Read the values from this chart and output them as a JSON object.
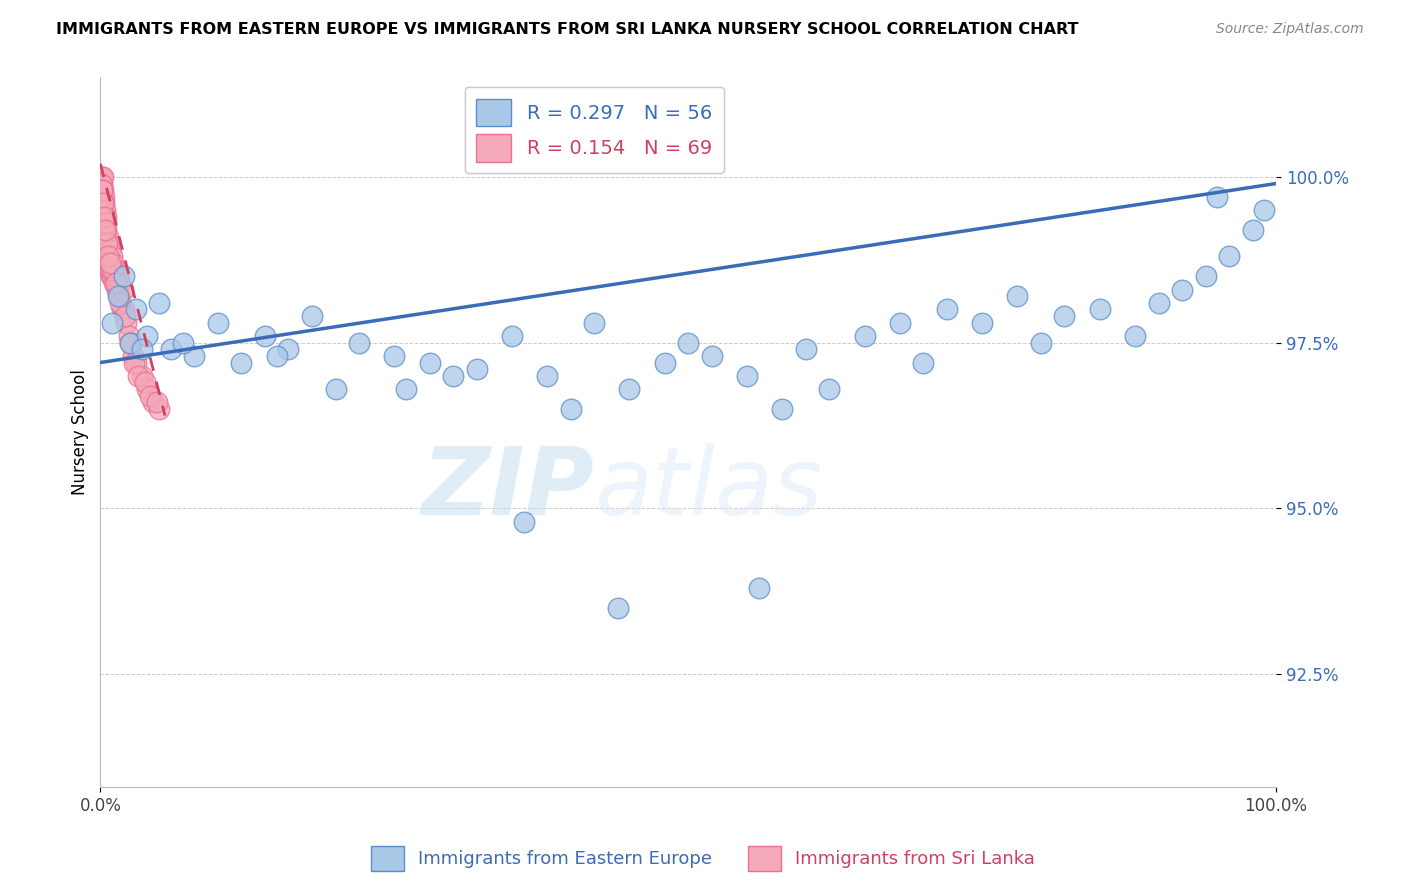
{
  "title": "IMMIGRANTS FROM EASTERN EUROPE VS IMMIGRANTS FROM SRI LANKA NURSERY SCHOOL CORRELATION CHART",
  "source": "Source: ZipAtlas.com",
  "ylabel": "Nursery School",
  "y_ticks": [
    92.5,
    95.0,
    97.5,
    100.0
  ],
  "y_tick_labels": [
    "92.5%",
    "95.0%",
    "97.5%",
    "100.0%"
  ],
  "x_range": [
    0,
    100
  ],
  "y_range": [
    90.8,
    101.5
  ],
  "legend_blue_label": "R = 0.297   N = 56",
  "legend_pink_label": "R = 0.154   N = 69",
  "legend_bottom_blue": "Immigrants from Eastern Europe",
  "legend_bottom_pink": "Immigrants from Sri Lanka",
  "blue_color": "#A8C8E8",
  "pink_color": "#F4A8B8",
  "blue_edge_color": "#5A8EC8",
  "pink_edge_color": "#E87090",
  "blue_line_color": "#3A6CB8",
  "pink_line_color": "#D04060",
  "watermark_zip": "ZIP",
  "watermark_atlas": "atlas",
  "blue_R": 0.297,
  "blue_N": 56,
  "pink_R": 0.154,
  "pink_N": 69,
  "blue_scatter_x": [
    1.0,
    1.5,
    2.0,
    2.5,
    3.0,
    4.0,
    5.0,
    6.0,
    8.0,
    10.0,
    12.0,
    14.0,
    16.0,
    18.0,
    20.0,
    22.0,
    25.0,
    28.0,
    30.0,
    32.0,
    35.0,
    38.0,
    40.0,
    42.0,
    45.0,
    48.0,
    50.0,
    52.0,
    55.0,
    58.0,
    60.0,
    62.0,
    65.0,
    68.0,
    70.0,
    72.0,
    75.0,
    78.0,
    80.0,
    82.0,
    85.0,
    88.0,
    90.0,
    92.0,
    94.0,
    96.0,
    98.0,
    99.0,
    3.5,
    7.0,
    15.0,
    26.0,
    36.0,
    44.0,
    56.0,
    95.0
  ],
  "blue_scatter_y": [
    97.8,
    98.2,
    98.5,
    97.5,
    98.0,
    97.6,
    98.1,
    97.4,
    97.3,
    97.8,
    97.2,
    97.6,
    97.4,
    97.9,
    96.8,
    97.5,
    97.3,
    97.2,
    97.0,
    97.1,
    97.6,
    97.0,
    96.5,
    97.8,
    96.8,
    97.2,
    97.5,
    97.3,
    97.0,
    96.5,
    97.4,
    96.8,
    97.6,
    97.8,
    97.2,
    98.0,
    97.8,
    98.2,
    97.5,
    97.9,
    98.0,
    97.6,
    98.1,
    98.3,
    98.5,
    98.8,
    99.2,
    99.5,
    97.4,
    97.5,
    97.3,
    96.8,
    94.8,
    93.5,
    93.8,
    99.7
  ],
  "pink_scatter_x": [
    0.05,
    0.08,
    0.1,
    0.12,
    0.15,
    0.18,
    0.2,
    0.22,
    0.25,
    0.28,
    0.3,
    0.32,
    0.35,
    0.38,
    0.4,
    0.42,
    0.45,
    0.5,
    0.55,
    0.6,
    0.65,
    0.7,
    0.75,
    0.8,
    0.85,
    0.9,
    0.95,
    1.0,
    1.1,
    1.2,
    1.3,
    1.4,
    1.5,
    1.6,
    1.7,
    1.8,
    1.9,
    2.0,
    2.2,
    2.4,
    2.6,
    2.8,
    3.0,
    3.5,
    4.0,
    4.5,
    5.0,
    0.06,
    0.09,
    0.16,
    0.48,
    0.58,
    0.88,
    1.05,
    1.35,
    1.65,
    2.1,
    2.5,
    2.9,
    3.2,
    3.8,
    4.2,
    4.8,
    0.13,
    0.23,
    0.33,
    0.43,
    0.68,
    0.78
  ],
  "pink_scatter_y": [
    100.0,
    99.8,
    100.0,
    99.6,
    99.9,
    99.7,
    100.0,
    99.5,
    99.8,
    99.4,
    99.7,
    99.3,
    99.6,
    99.2,
    99.5,
    99.0,
    99.4,
    99.2,
    99.0,
    98.8,
    99.1,
    98.7,
    99.0,
    98.6,
    98.9,
    98.5,
    98.8,
    98.5,
    98.7,
    98.4,
    98.6,
    98.3,
    98.5,
    98.2,
    98.4,
    98.0,
    98.3,
    98.0,
    97.8,
    97.6,
    97.5,
    97.3,
    97.2,
    97.0,
    96.8,
    96.6,
    96.5,
    99.9,
    99.7,
    99.8,
    99.3,
    99.0,
    98.6,
    98.6,
    98.4,
    98.1,
    97.9,
    97.5,
    97.2,
    97.0,
    96.9,
    96.7,
    96.6,
    99.8,
    99.6,
    99.4,
    99.2,
    98.8,
    98.7
  ],
  "blue_trendline_x": [
    0,
    100
  ],
  "blue_trendline_y": [
    97.2,
    99.9
  ],
  "pink_trendline_x": [
    0,
    5.5
  ],
  "pink_trendline_y": [
    100.2,
    96.4
  ]
}
